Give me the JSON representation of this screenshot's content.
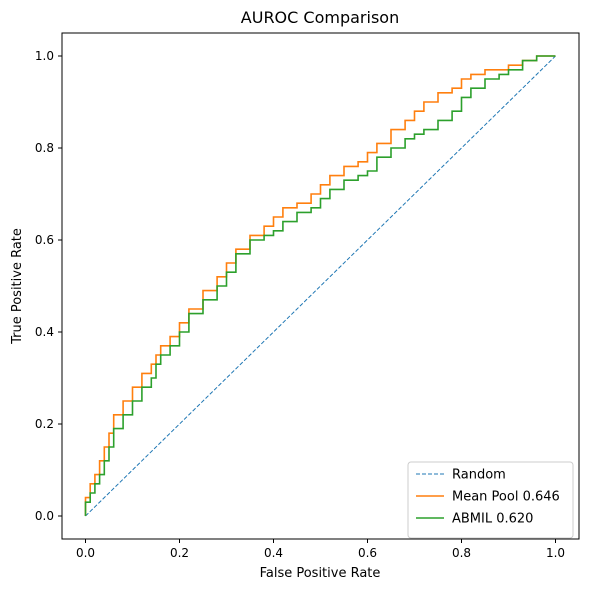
{
  "chart_data": {
    "type": "line",
    "title": "AUROC Comparison",
    "xlabel": "False Positive Rate",
    "ylabel": "True Positive Rate",
    "xlim": [
      -0.05,
      1.05
    ],
    "ylim": [
      -0.05,
      1.05
    ],
    "xticks": [
      0.0,
      0.2,
      0.4,
      0.6,
      0.8,
      1.0
    ],
    "yticks": [
      0.0,
      0.2,
      0.4,
      0.6,
      0.8,
      1.0
    ],
    "xtick_labels": [
      "0.0",
      "0.2",
      "0.4",
      "0.6",
      "0.8",
      "1.0"
    ],
    "ytick_labels": [
      "0.0",
      "0.2",
      "0.4",
      "0.6",
      "0.8",
      "1.0"
    ],
    "grid": false,
    "legend_position": "lower-right",
    "series": [
      {
        "name": "Random",
        "color": "#1f77b4",
        "style": "dashed",
        "x": [
          0.0,
          1.0
        ],
        "y": [
          0.0,
          1.0
        ]
      },
      {
        "name": "Mean Pool 0.646",
        "color": "#ff7f0e",
        "style": "solid",
        "x": [
          0.0,
          0.01,
          0.02,
          0.03,
          0.04,
          0.05,
          0.06,
          0.08,
          0.1,
          0.12,
          0.14,
          0.15,
          0.16,
          0.18,
          0.2,
          0.22,
          0.25,
          0.28,
          0.3,
          0.32,
          0.35,
          0.38,
          0.4,
          0.42,
          0.45,
          0.48,
          0.5,
          0.52,
          0.55,
          0.58,
          0.6,
          0.62,
          0.65,
          0.68,
          0.7,
          0.72,
          0.75,
          0.78,
          0.8,
          0.82,
          0.85,
          0.88,
          0.9,
          0.93,
          0.96,
          1.0
        ],
        "y": [
          0.0,
          0.04,
          0.07,
          0.09,
          0.12,
          0.15,
          0.18,
          0.22,
          0.25,
          0.28,
          0.31,
          0.33,
          0.35,
          0.37,
          0.39,
          0.42,
          0.45,
          0.49,
          0.52,
          0.55,
          0.58,
          0.61,
          0.63,
          0.65,
          0.67,
          0.68,
          0.7,
          0.72,
          0.74,
          0.76,
          0.77,
          0.79,
          0.81,
          0.84,
          0.86,
          0.88,
          0.9,
          0.92,
          0.93,
          0.95,
          0.96,
          0.97,
          0.97,
          0.98,
          0.99,
          1.0
        ]
      },
      {
        "name": "ABMIL 0.620",
        "color": "#2ca02c",
        "style": "solid",
        "x": [
          0.0,
          0.01,
          0.02,
          0.03,
          0.04,
          0.05,
          0.06,
          0.08,
          0.1,
          0.12,
          0.14,
          0.15,
          0.16,
          0.18,
          0.2,
          0.22,
          0.25,
          0.28,
          0.3,
          0.32,
          0.35,
          0.38,
          0.4,
          0.42,
          0.45,
          0.48,
          0.5,
          0.52,
          0.55,
          0.58,
          0.6,
          0.62,
          0.65,
          0.68,
          0.7,
          0.72,
          0.75,
          0.78,
          0.8,
          0.82,
          0.85,
          0.88,
          0.9,
          0.93,
          0.96,
          1.0
        ],
        "y": [
          0.0,
          0.03,
          0.05,
          0.07,
          0.09,
          0.12,
          0.15,
          0.19,
          0.22,
          0.25,
          0.28,
          0.3,
          0.33,
          0.35,
          0.37,
          0.4,
          0.44,
          0.47,
          0.5,
          0.53,
          0.57,
          0.6,
          0.61,
          0.62,
          0.64,
          0.66,
          0.67,
          0.69,
          0.71,
          0.73,
          0.74,
          0.75,
          0.78,
          0.8,
          0.82,
          0.83,
          0.84,
          0.86,
          0.88,
          0.91,
          0.93,
          0.95,
          0.96,
          0.97,
          0.99,
          1.0
        ]
      }
    ]
  }
}
